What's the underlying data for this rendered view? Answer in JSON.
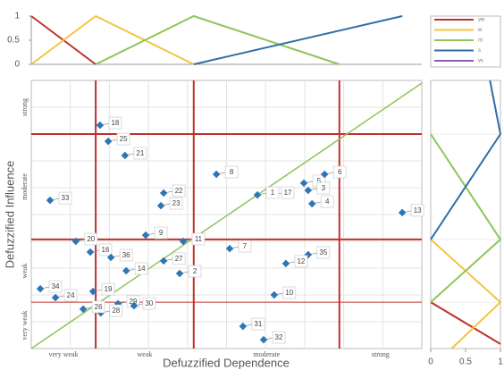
{
  "chart_data": [
    {
      "type": "line",
      "xlim": [
        0,
        1
      ],
      "ylim": [
        0,
        1
      ],
      "yticks": [
        0,
        0.5,
        1
      ],
      "series": [
        {
          "name": "vw",
          "color": "#c0302b",
          "x": [
            0,
            0.165
          ],
          "values": [
            1,
            0
          ]
        },
        {
          "name": "w",
          "color": "#f2c441",
          "x": [
            0,
            0.165,
            0.416
          ],
          "values": [
            0,
            1,
            0
          ]
        },
        {
          "name": "m",
          "color": "#8dc65a",
          "x": [
            0.165,
            0.416,
            0.789
          ],
          "values": [
            0,
            1,
            0
          ]
        },
        {
          "name": "s",
          "color": "#2e6fa6",
          "x": [
            0.416,
            0.95
          ],
          "values": [
            0,
            1
          ]
        },
        {
          "name": "vs",
          "color": "#8b5fb0",
          "x": [],
          "values": []
        }
      ]
    },
    {
      "type": "scatter",
      "x_label": "Defuzzified Dependence",
      "y_label": "Defuzzified Influence",
      "xlim": [
        0,
        1
      ],
      "ylim": [
        0,
        1
      ],
      "x_categories": [
        "very weak",
        "weak",
        "moderate",
        "strong"
      ],
      "y_categories": [
        "very weak",
        "weak",
        "moderate",
        "strong"
      ],
      "x_thresholds": [
        0.165,
        0.416,
        0.789
      ],
      "y_thresholds": [
        0.173,
        0.407,
        0.8
      ],
      "threshold_color": "#c0302b",
      "diagonal_color": "#8dc65a",
      "grid": true,
      "series": [
        {
          "color": "#2e75b6",
          "labels": [
            "18",
            "25",
            "21",
            "33",
            "22",
            "23",
            "8",
            "5",
            "6",
            "17",
            "3",
            "1",
            "4",
            "13",
            "9",
            "20",
            "11",
            "7",
            "16",
            "27",
            "35",
            "36",
            "12",
            "14",
            "2",
            "34",
            "24",
            "19",
            "10",
            "29",
            "30",
            "28",
            "26",
            "31",
            "32"
          ],
          "x": [
            0.176,
            0.197,
            0.24,
            0.048,
            0.339,
            0.332,
            0.474,
            0.698,
            0.751,
            0.618,
            0.709,
            0.579,
            0.719,
            0.95,
            0.293,
            0.114,
            0.389,
            0.508,
            0.151,
            0.339,
            0.709,
            0.204,
            0.652,
            0.243,
            0.38,
            0.023,
            0.062,
            0.158,
            0.622,
            0.222,
            0.263,
            0.178,
            0.133,
            0.542,
            0.595
          ],
          "values": [
            0.833,
            0.773,
            0.72,
            0.553,
            0.58,
            0.533,
            0.65,
            0.617,
            0.65,
            0.573,
            0.59,
            0.573,
            0.54,
            0.507,
            0.423,
            0.4,
            0.4,
            0.373,
            0.36,
            0.327,
            0.35,
            0.34,
            0.317,
            0.29,
            0.28,
            0.223,
            0.19,
            0.213,
            0.2,
            0.167,
            0.16,
            0.133,
            0.147,
            0.083,
            0.033
          ]
        }
      ]
    },
    {
      "type": "line",
      "xlim": [
        0,
        1
      ],
      "xticks": [
        0,
        0.5,
        1
      ],
      "ylim": [
        0,
        1
      ],
      "series": [
        {
          "name": "vw",
          "color": "#c0302b",
          "x": [
            0,
            1
          ],
          "values": [
            0.173,
            0.017
          ]
        },
        {
          "name": "w",
          "color": "#f2c441",
          "x": [
            0,
            1,
            0.3
          ],
          "values": [
            0.407,
            0.173,
            0
          ]
        },
        {
          "name": "m",
          "color": "#8dc65a",
          "x": [
            0,
            1,
            0
          ],
          "values": [
            0.8,
            0.407,
            0.173
          ]
        },
        {
          "name": "s",
          "color": "#2e6fa6",
          "x": [
            0,
            1,
            0.85
          ],
          "values": [
            0.407,
            0.8,
            1
          ]
        }
      ]
    }
  ]
}
